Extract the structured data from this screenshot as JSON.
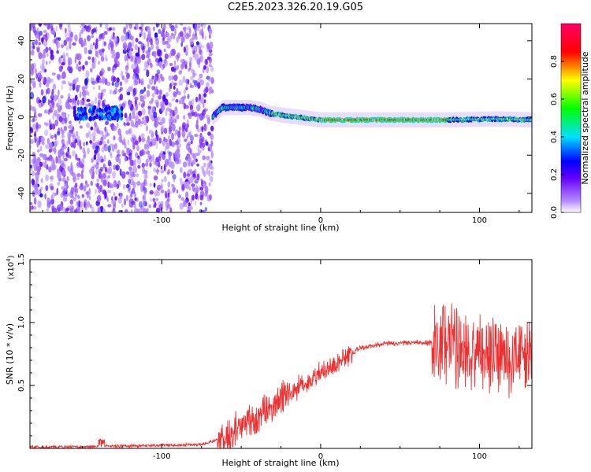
{
  "title": "C2E5.2023.326.20.19.G05",
  "chart_data": [
    {
      "type": "heatmap",
      "xlabel": "Height of straight line (km)",
      "ylabel": "Frequency (Hz)",
      "xlim": [
        -183,
        133
      ],
      "ylim": [
        -50,
        49
      ],
      "xticks": [
        -100,
        0,
        100
      ],
      "yticks": [
        -40,
        -20,
        0,
        20,
        40
      ],
      "colorbar": {
        "label": "Normalized spectral amplitude",
        "range": [
          0,
          1
        ],
        "ticks": [
          0.0,
          0.2,
          0.4,
          0.6,
          0.8
        ],
        "colormap": [
          "#ffffff",
          "#7a00ff",
          "#0000ff",
          "#00e5ff",
          "#00ff00",
          "#ffff00",
          "#ff0000",
          "#ff0066"
        ]
      },
      "regions": [
        {
          "name": "noise",
          "x": [
            -183,
            -68
          ],
          "freq": [
            -50,
            49
          ],
          "amplitude": 0.12
        },
        {
          "name": "signal",
          "points": [
            {
              "x": -68,
              "freq": 0
            },
            {
              "x": -62,
              "freq": 5
            },
            {
              "x": -45,
              "freq": 5
            },
            {
              "x": -38,
              "freq": 4
            },
            {
              "x": -32,
              "freq": 2
            },
            {
              "x": -25,
              "freq": 1
            },
            {
              "x": -15,
              "freq": 0
            },
            {
              "x": 0,
              "freq": -1.5
            },
            {
              "x": 50,
              "freq": -1.5
            },
            {
              "x": 80,
              "freq": -1.5
            },
            {
              "x": 110,
              "freq": -1
            },
            {
              "x": 133,
              "freq": -1.5
            }
          ]
        }
      ]
    },
    {
      "type": "line",
      "xlabel": "Height of straight line (km)",
      "ylabel": "SNR (10 * v/v)",
      "yscale_label": "(x10",
      "yscale_exp": "4",
      "yscale_close": ")",
      "xlim": [
        -183,
        133
      ],
      "ylim": [
        0,
        15000
      ],
      "xticks": [
        -100,
        0,
        100
      ],
      "yticks": [
        5000,
        10000,
        15000
      ],
      "ytick_labels": [
        "0.5",
        "1.0",
        "1.5"
      ],
      "series": [
        {
          "color": "#f03030",
          "trend": [
            [
              -183,
              100
            ],
            [
              -140,
              150
            ],
            [
              -75,
              300
            ],
            [
              -65,
              700
            ],
            [
              -55,
              1300
            ],
            [
              -40,
              2500
            ],
            [
              -30,
              3300
            ],
            [
              -15,
              4800
            ],
            [
              0,
              6000
            ],
            [
              15,
              7200
            ],
            [
              25,
              8000
            ],
            [
              40,
              8300
            ],
            [
              60,
              8400
            ],
            [
              75,
              8400
            ],
            [
              85,
              8300
            ],
            [
              100,
              7700
            ],
            [
              115,
              7500
            ],
            [
              133,
              7200
            ]
          ]
        }
      ]
    }
  ]
}
